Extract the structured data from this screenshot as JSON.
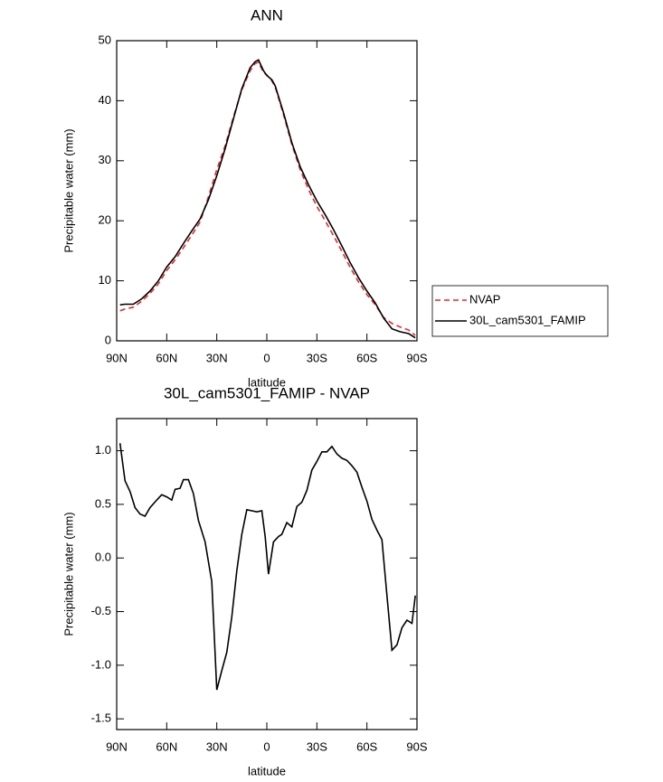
{
  "chart_data": [
    {
      "type": "line",
      "title": "ANN",
      "xlabel": "latitude",
      "ylabel": "Precipitable water (mm)",
      "x": [
        88,
        85,
        80,
        75,
        70,
        65,
        60,
        55,
        50,
        45,
        40,
        35,
        30,
        25,
        20,
        15,
        10,
        7,
        5,
        2,
        0,
        -3,
        -5,
        -10,
        -15,
        -20,
        -25,
        -30,
        -35,
        -40,
        -45,
        -50,
        -55,
        -60,
        -65,
        -70,
        -75,
        -80,
        -85,
        -89
      ],
      "series": [
        {
          "name": "NVAP",
          "color": "#e8262a",
          "dashed": true,
          "values": [
            5.0,
            5.3,
            5.6,
            6.6,
            7.9,
            9.5,
            11.7,
            13.5,
            15.5,
            17.6,
            19.8,
            24.0,
            28.5,
            32.5,
            37.3,
            41.8,
            45.0,
            46.2,
            46.4,
            44.7,
            44.3,
            43.3,
            42.3,
            37.7,
            32.7,
            28.5,
            25.2,
            22.4,
            20.0,
            17.5,
            14.9,
            12.2,
            9.8,
            7.7,
            6.0,
            3.9,
            2.9,
            2.3,
            1.8,
            0.9
          ]
        },
        {
          "name": "30L_cam5301_FAMIP",
          "color": "#000000",
          "dashed": false,
          "values": [
            6.0,
            6.1,
            6.1,
            7.0,
            8.3,
            10.0,
            12.3,
            14.0,
            16.2,
            18.3,
            20.3,
            23.5,
            27.5,
            32.0,
            37.0,
            42.0,
            45.5,
            46.5,
            46.8,
            45.0,
            44.2,
            43.5,
            42.5,
            38.0,
            33.0,
            29.0,
            26.0,
            23.3,
            21.0,
            18.5,
            15.8,
            13.0,
            10.5,
            8.3,
            6.3,
            3.8,
            2.0,
            1.5,
            1.2,
            0.5
          ]
        }
      ],
      "xlim": [
        90,
        -90
      ],
      "ylim": [
        0,
        50
      ],
      "xticks": [
        {
          "value": 90,
          "label": "90N"
        },
        {
          "value": 60,
          "label": "60N"
        },
        {
          "value": 30,
          "label": "30N"
        },
        0,
        {
          "value": -30,
          "label": "30S"
        },
        {
          "value": -60,
          "label": "60S"
        },
        {
          "value": -90,
          "label": "90S"
        }
      ],
      "yticks": [
        0,
        10,
        20,
        30,
        40,
        50
      ],
      "legend": "right"
    },
    {
      "type": "line",
      "title": "30L_cam5301_FAMIP - NVAP",
      "xlabel": "latitude",
      "ylabel": "Precipitable water (mm)",
      "x": [
        88,
        85,
        82,
        79,
        76,
        73,
        70,
        66,
        63,
        60,
        57,
        55,
        52,
        50,
        47,
        44,
        41,
        37,
        33,
        30,
        27,
        24,
        21,
        18,
        15,
        12,
        9,
        6,
        3,
        1,
        -1,
        -4,
        -7,
        -9,
        -12,
        -15,
        -18,
        -21,
        -24,
        -27,
        -30,
        -33,
        -36,
        -39,
        -42,
        -45,
        -48,
        -51,
        -54,
        -57,
        -60,
        -63,
        -66,
        -69,
        -72,
        -75,
        -78,
        -81,
        -84,
        -87,
        -89
      ],
      "color": "#000000",
      "values": [
        1.07,
        0.72,
        0.62,
        0.47,
        0.41,
        0.39,
        0.47,
        0.54,
        0.59,
        0.57,
        0.54,
        0.64,
        0.65,
        0.73,
        0.73,
        0.6,
        0.35,
        0.15,
        -0.22,
        -1.23,
        -1.05,
        -0.88,
        -0.55,
        -0.12,
        0.22,
        0.45,
        0.44,
        0.43,
        0.44,
        0.2,
        -0.15,
        0.15,
        0.2,
        0.22,
        0.33,
        0.29,
        0.48,
        0.52,
        0.63,
        0.82,
        0.9,
        0.99,
        0.99,
        1.04,
        0.97,
        0.93,
        0.91,
        0.86,
        0.8,
        0.66,
        0.53,
        0.36,
        0.26,
        0.17,
        -0.35,
        -0.86,
        -0.81,
        -0.65,
        -0.58,
        -0.61,
        -0.35
      ],
      "xlim": [
        90,
        -90
      ],
      "ylim": [
        -1.6,
        1.3
      ],
      "xticks": [
        {
          "value": 90,
          "label": "90N"
        },
        {
          "value": 60,
          "label": "60N"
        },
        {
          "value": 30,
          "label": "30N"
        },
        0,
        {
          "value": -30,
          "label": "30S"
        },
        {
          "value": -60,
          "label": "60S"
        },
        {
          "value": -90,
          "label": "90S"
        }
      ],
      "yticks": [
        -1.5,
        {
          "value": -1,
          "label": "-1.0"
        },
        -0.5,
        {
          "value": 0,
          "label": "0.0"
        },
        0.5,
        {
          "value": 1,
          "label": "1.0"
        }
      ]
    }
  ]
}
